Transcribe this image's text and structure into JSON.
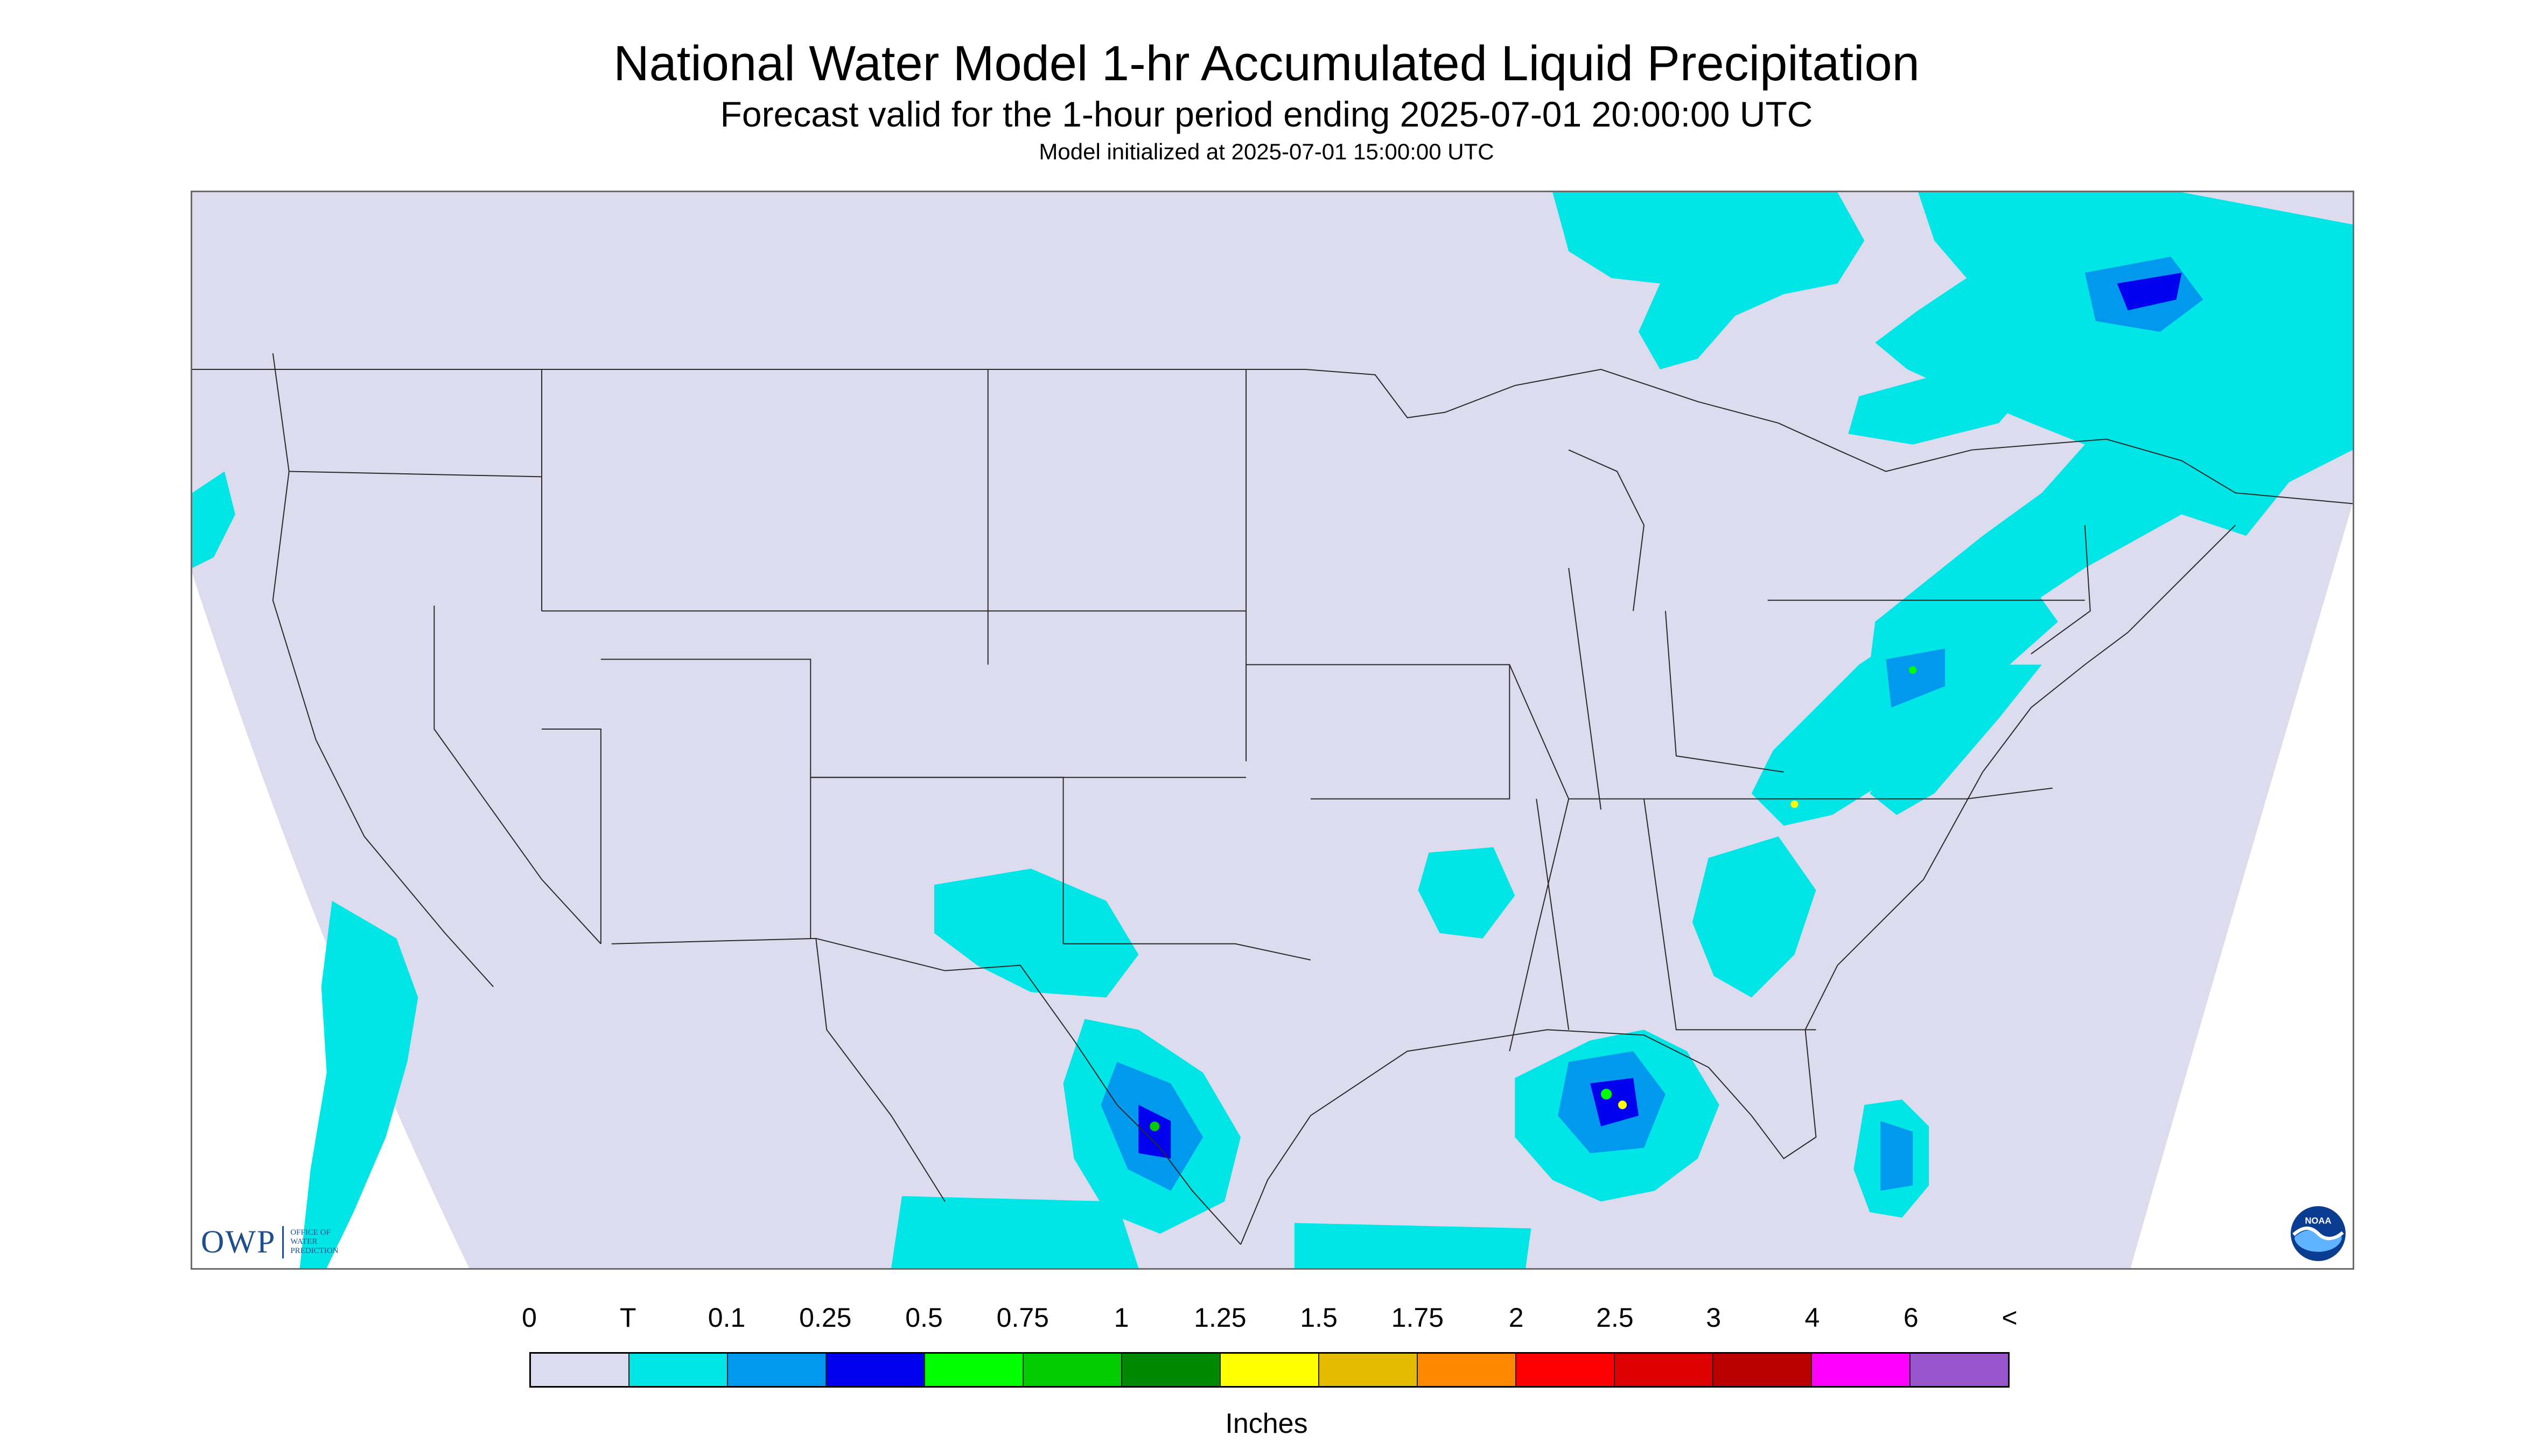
{
  "title": "National Water Model 1-hr Accumulated Liquid Precipitation",
  "subtitle": "Forecast valid for the 1-hour period ending 2025-07-01 20:00:00 UTC",
  "init": "Model initialized at 2025-07-01 15:00:00 UTC",
  "map": {
    "background_color": "#dcdcee",
    "outside_color": "#ffffff",
    "boundary_color": "#2a2a2a"
  },
  "logos": {
    "owp": {
      "text": "OWP",
      "subtitle": [
        "OFFICE OF",
        "WATER",
        "PREDICTION"
      ]
    },
    "noaa": {
      "text": "NOAA"
    }
  },
  "legend": {
    "labels": [
      "0",
      "T",
      "0.1",
      "0.25",
      "0.5",
      "0.75",
      "1",
      "1.25",
      "1.5",
      "1.75",
      "2",
      "2.5",
      "3",
      "4",
      "6",
      "<"
    ],
    "colors": [
      "#dcdcee",
      "#00e5e5",
      "#0099ee",
      "#0000ee",
      "#00ff00",
      "#00cc00",
      "#008800",
      "#ffff00",
      "#e5bb00",
      "#ff8800",
      "#ff0000",
      "#dd0000",
      "#bb0000",
      "#ff00ff",
      "#9955cc"
    ],
    "units": "Inches"
  }
}
